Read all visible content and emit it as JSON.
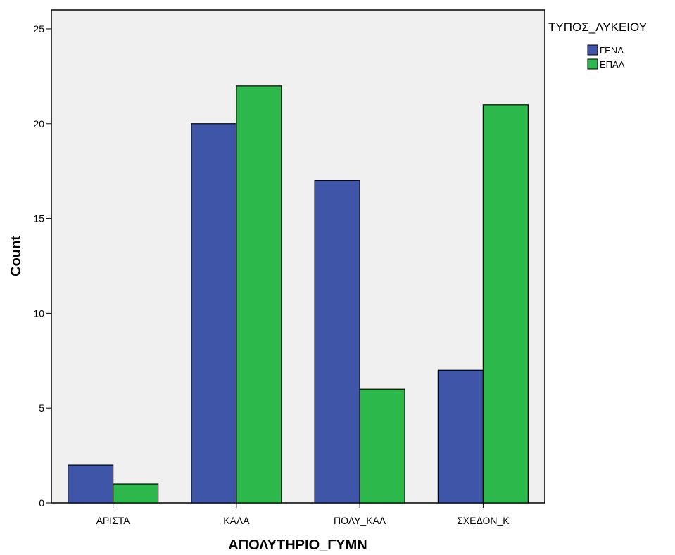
{
  "chart_data": {
    "type": "bar",
    "title": "",
    "xlabel": "ΑΠΟΛΥΤΗΡΙΟ_ΓΥΜΝ",
    "ylabel": "Count",
    "categories": [
      "ΑΡΙΣΤΑ",
      "ΚΑΛΑ",
      "ΠΟΛΥ_ΚΑΛ",
      "ΣΧΕΔΟΝ_Κ"
    ],
    "series": [
      {
        "name": "ΓΕΝΛ",
        "values": [
          2,
          20,
          17,
          7
        ],
        "color": "#3f55a8"
      },
      {
        "name": "ΕΠΑΛ",
        "values": [
          1,
          22,
          6,
          21
        ],
        "color": "#2db84b"
      }
    ],
    "ylim": [
      0,
      26
    ],
    "yticks": [
      0,
      5,
      10,
      15,
      20,
      25
    ],
    "legend": {
      "title": "ΤΥΠΟΣ_ΛΥΚΕΙΟΥ",
      "placement": "top-right, outside plot"
    },
    "plot_background": "#f0f0f0",
    "grid": false
  }
}
